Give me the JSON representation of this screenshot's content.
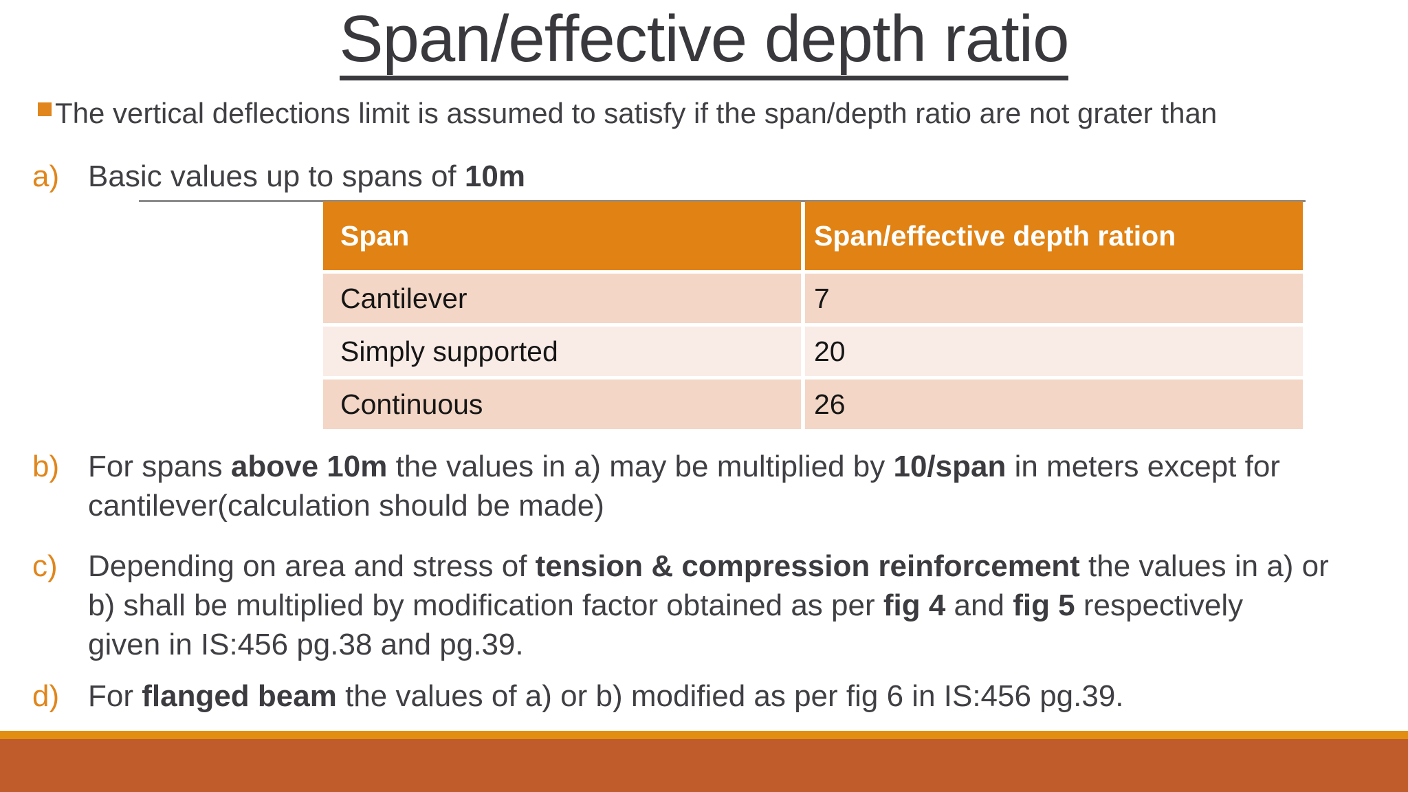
{
  "title": "Span/effective depth ratio",
  "intro": {
    "bullet_icon": "square-bullet",
    "text": "The vertical deflections limit is assumed to satisfy if the span/depth ratio are not grater than"
  },
  "items": {
    "a": {
      "label": "a)",
      "runs": [
        "Basic values up to spans of ",
        "10m"
      ]
    },
    "b": {
      "label": "b)",
      "runs": [
        "For spans ",
        "above 10m",
        " the values in a) may be multiplied by ",
        "10/span",
        " in meters except for",
        "cantilever(calculation should be made)"
      ]
    },
    "c": {
      "label": "c)",
      "runs": [
        "Depending on area and stress of ",
        "tension & compression reinforcement",
        " the values in a) or",
        "b) shall be multiplied by modification factor obtained as per ",
        "fig 4",
        " and ",
        "fig 5",
        " respectively",
        "given in IS:456 pg.38 and pg.39."
      ]
    },
    "d": {
      "label": "d)",
      "runs": [
        "For ",
        "flanged beam",
        " the values of a) or b) modified as per fig 6 in IS:456 pg.39."
      ]
    }
  },
  "table": {
    "headers": [
      "Span",
      "Span/effective depth ration"
    ],
    "rows": [
      {
        "span": "Cantilever",
        "ratio": "7"
      },
      {
        "span": "Simply supported",
        "ratio": "20"
      },
      {
        "span": "Continuous",
        "ratio": "26"
      }
    ]
  },
  "colors": {
    "table_header_orange": "#e08214",
    "item_label_orange": "#e0861c",
    "table_row_dark": "#f3d6c5",
    "table_row_light": "#f9ebe6",
    "footer_strip_orange": "#e28e12",
    "footer_bar_rust": "#c05c2b",
    "text_dark": "#3f3f44",
    "underline_gray": "#3a3a3e",
    "topline_gray": "#8a8a8a"
  }
}
